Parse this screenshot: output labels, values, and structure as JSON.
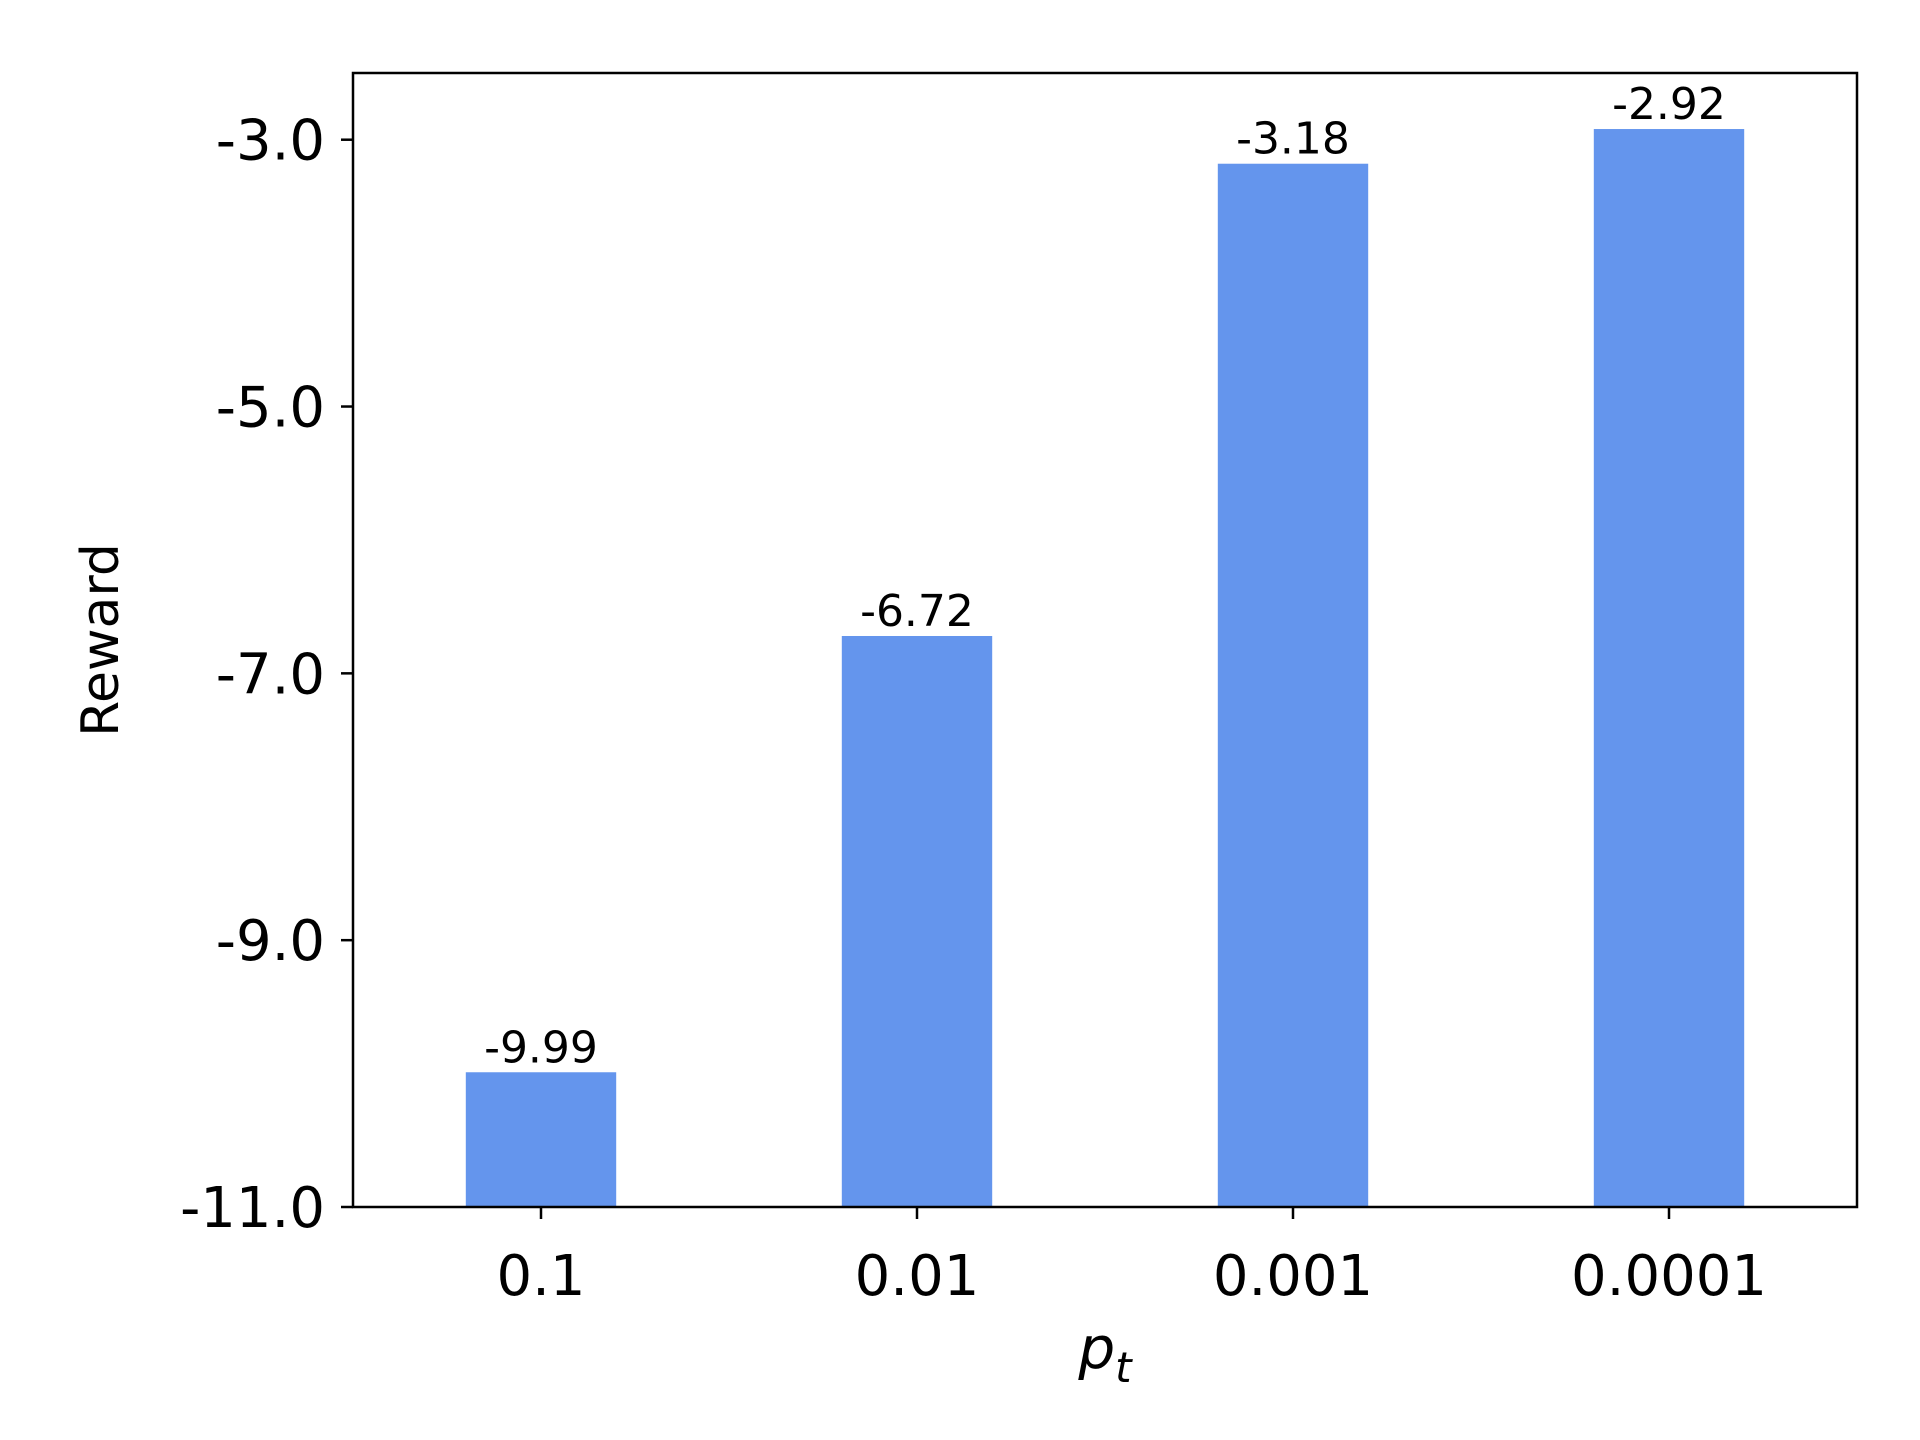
{
  "chart_data": {
    "type": "bar",
    "categories": [
      "0.1",
      "0.01",
      "0.001",
      "0.0001"
    ],
    "values": [
      -9.99,
      -6.72,
      -3.18,
      -2.92
    ],
    "data_labels": [
      "-9.99",
      "-6.72",
      "-3.18",
      "-2.92"
    ],
    "xlabel": {
      "base": "p",
      "subscript": "t"
    },
    "ylabel": "Reward",
    "ylim": [
      -11.0,
      -2.5
    ],
    "yticks": [
      -11.0,
      -9.0,
      -7.0,
      -5.0,
      -3.0
    ],
    "ytick_labels": [
      "-11.0",
      "-9.0",
      "-7.0",
      "-5.0",
      "-3.0"
    ],
    "bar_color": "#6495ED",
    "grid": false,
    "legend": false
  }
}
